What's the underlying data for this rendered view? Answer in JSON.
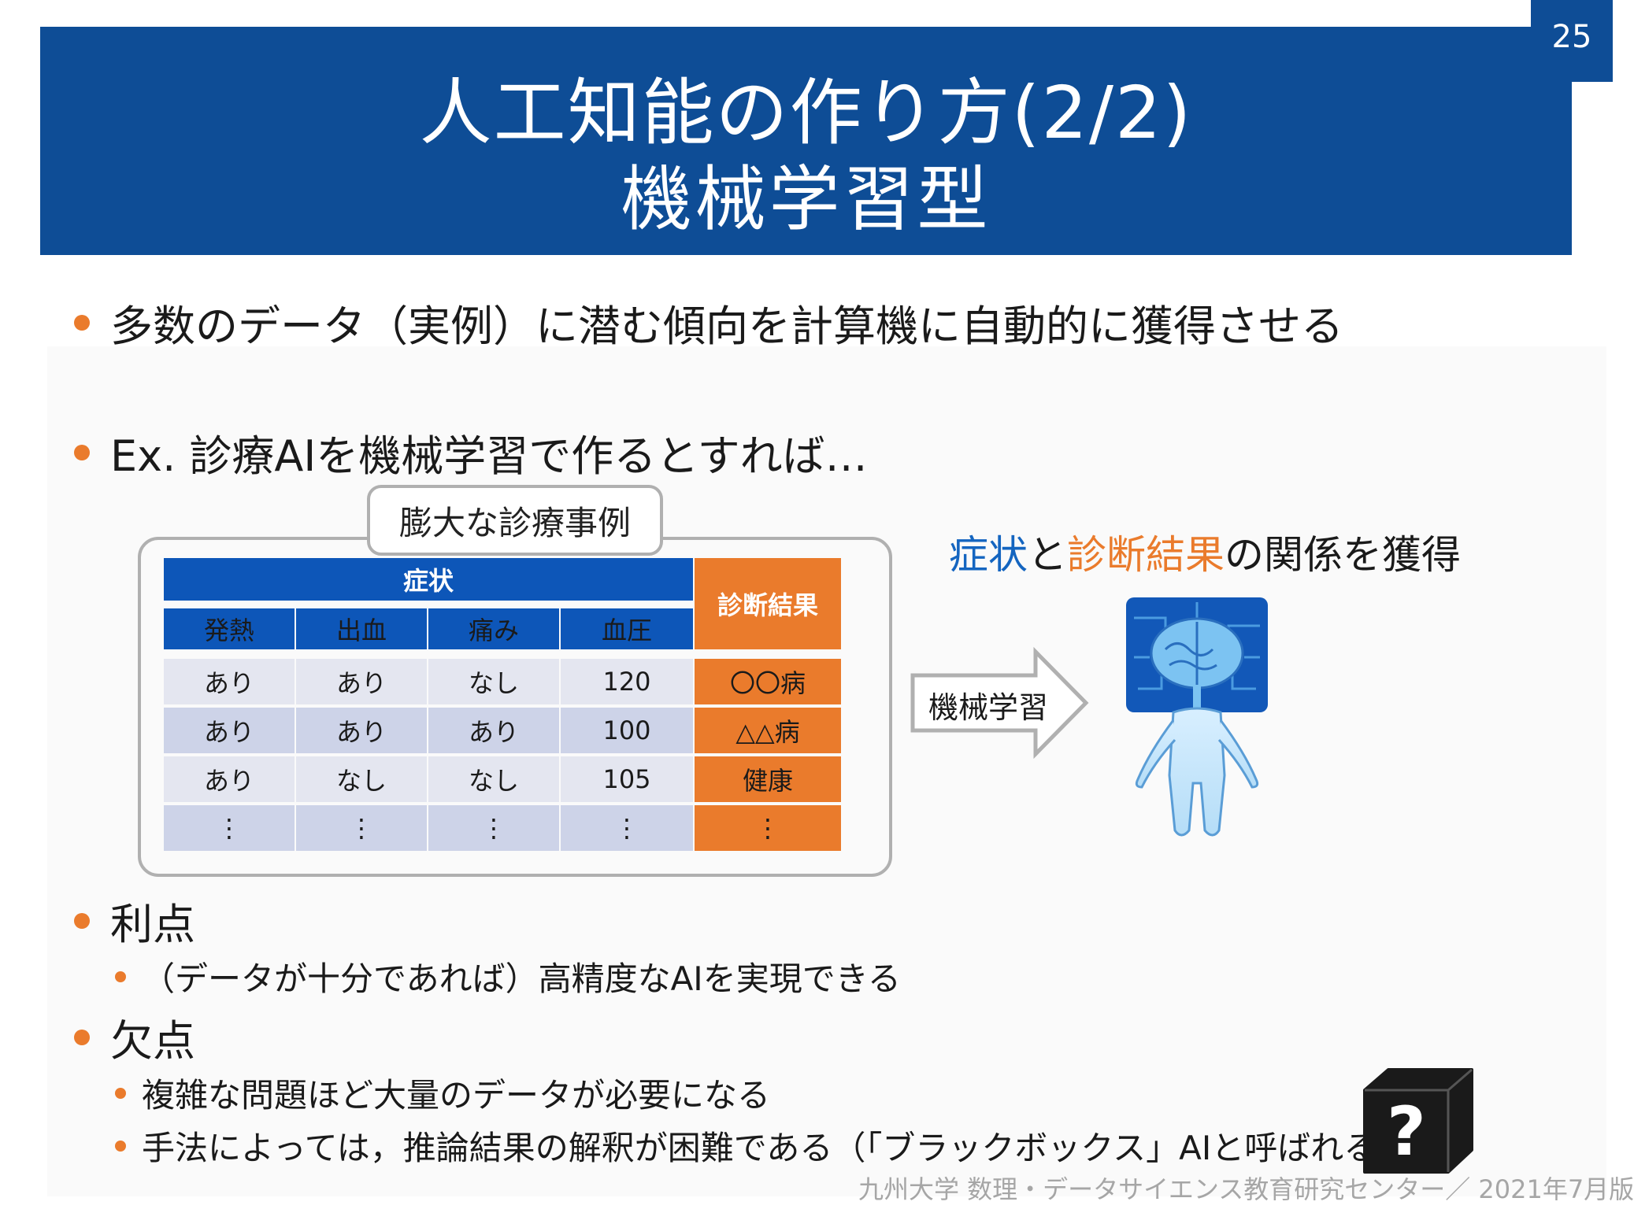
{
  "header": {
    "title_line1": "人工知能の作り方(2/2)",
    "title_line2": "機械学習型",
    "page_number": "25"
  },
  "bullets": {
    "b1": "多数のデータ（実例）に潜む傾向を計算機に自動的に獲得させる",
    "b2": "Ex. 診療AIを機械学習で作るとすれば…",
    "b3": "利点",
    "b3_sub": "（データが十分であれば）高精度なAIを実現できる",
    "b4": "欠点",
    "b4_sub1": "複雑な問題ほど大量のデータが必要になる",
    "b4_sub2": "手法によっては，推論結果の解釈が困難である（「ブラックボックス」AIと呼ばれる）"
  },
  "table": {
    "group_label": "膨大な診療事例",
    "symptom_header": "症状",
    "diagnosis_header": "診断結果",
    "columns": [
      "発熱",
      "出血",
      "痛み",
      "血圧"
    ],
    "rows": [
      [
        "あり",
        "あり",
        "なし",
        "120",
        "〇〇病"
      ],
      [
        "あり",
        "あり",
        "あり",
        "100",
        "△△病"
      ],
      [
        "あり",
        "なし",
        "なし",
        "105",
        "健康"
      ],
      [
        "⋮",
        "⋮",
        "⋮",
        "⋮",
        "⋮"
      ]
    ]
  },
  "right": {
    "relation_part1": "症状",
    "relation_part2": "と",
    "relation_part3": "診断結果",
    "relation_part4": "の関係を獲得",
    "arrow_label": "機械学習"
  },
  "footer": "九州大学 数理・データサイエンス教育研究センター／ 2021年7月版",
  "colors": {
    "header_bg": "#0e4d96",
    "accent_orange": "#ea7b2c",
    "table_blue": "#0d56b8"
  }
}
